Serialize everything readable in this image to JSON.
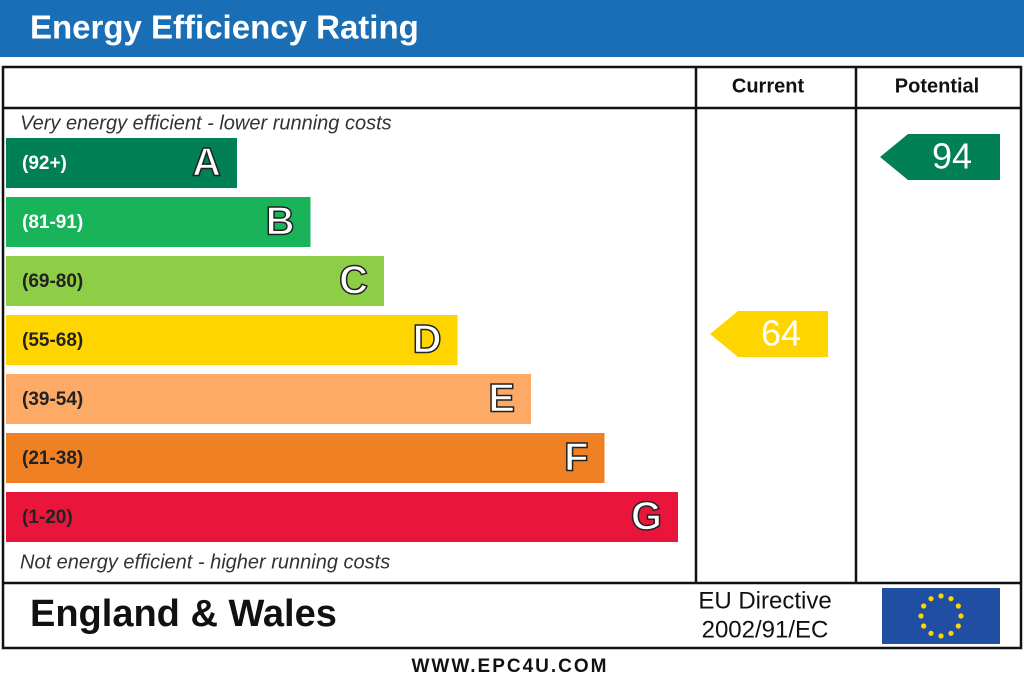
{
  "title": "Energy Efficiency Rating",
  "columns": {
    "current": "Current",
    "potential": "Potential"
  },
  "top_note": "Very energy efficient - lower running costs",
  "bottom_note": "Not energy efficient - higher running costs",
  "bands": [
    {
      "range": "(92+)",
      "letter": "A",
      "color": "#008054",
      "text_color": "#ffffff"
    },
    {
      "range": "(81-91)",
      "letter": "B",
      "color": "#19b459",
      "text_color": "#ffffff"
    },
    {
      "range": "(69-80)",
      "letter": "C",
      "color": "#8dce46",
      "text_color": "#222222"
    },
    {
      "range": "(55-68)",
      "letter": "D",
      "color": "#ffd500",
      "text_color": "#222222"
    },
    {
      "range": "(39-54)",
      "letter": "E",
      "color": "#fcaa65",
      "text_color": "#222222"
    },
    {
      "range": "(21-38)",
      "letter": "F",
      "color": "#ef8023",
      "text_color": "#222222"
    },
    {
      "range": "(1-20)",
      "letter": "G",
      "color": "#e9153b",
      "text_color": "#222222"
    }
  ],
  "current": {
    "value": 64,
    "color": "#ffd500"
  },
  "potential": {
    "value": 94,
    "color": "#008054"
  },
  "footer": {
    "region": "England & Wales",
    "directive": [
      "EU Directive",
      "2002/91/EC"
    ]
  },
  "website": "WWW.EPC4U.COM"
}
